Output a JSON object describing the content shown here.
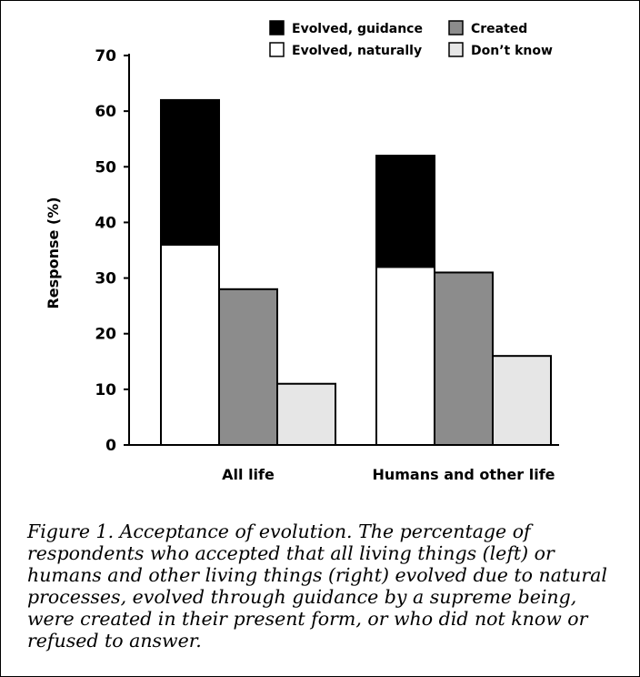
{
  "chart_data": {
    "type": "bar",
    "categories": [
      "All life",
      "Humans and other life"
    ],
    "series": [
      {
        "name": "Evolved, naturally",
        "values": [
          36,
          32
        ],
        "color": "#ffffff",
        "stack": "evolved"
      },
      {
        "name": "Evolved, guidance",
        "values": [
          26,
          20
        ],
        "color": "#000000",
        "stack": "evolved"
      },
      {
        "name": "Created",
        "values": [
          28,
          31
        ],
        "color": "#8c8c8c",
        "stack": "created"
      },
      {
        "name": "Don’t know",
        "values": [
          11,
          16
        ],
        "color": "#e6e6e6",
        "stack": "dontknow"
      }
    ],
    "ylabel": "Response (%)",
    "xlabel": "",
    "ylim": [
      0,
      70
    ],
    "yticks": [
      0,
      10,
      20,
      30,
      40,
      50,
      60,
      70
    ],
    "grid": false,
    "legend": {
      "placement": "top-right",
      "order": [
        "Evolved, guidance",
        "Created",
        "Evolved, naturally",
        "Don’t know"
      ]
    }
  },
  "caption": "Figure 1. Acceptance of evolution. The percentage of respondents who accepted that all living things (left) or humans and other living things (right) evolved due to natural processes, evolved through guidance by a supreme being, were created in their present form, or who did not know or refused to answer."
}
